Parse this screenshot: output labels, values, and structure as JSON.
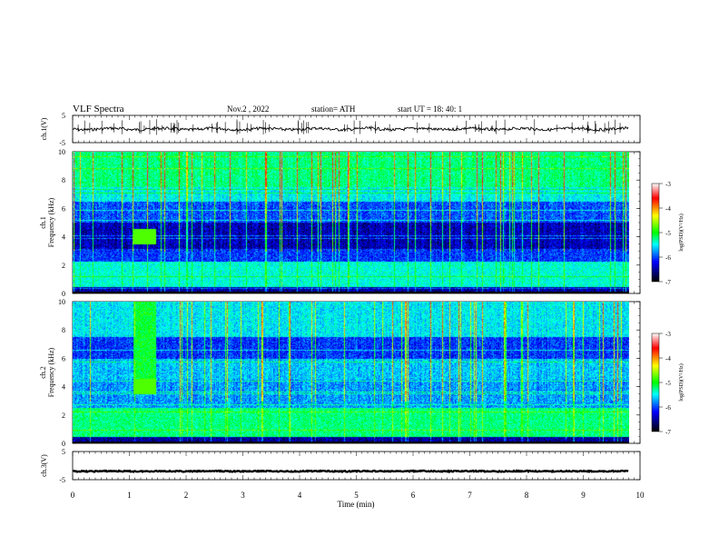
{
  "header": {
    "title": "VLF  Spectra",
    "date": "Nov.2  , 2022",
    "station": "station= ATH",
    "start": "start  UT  =    18: 40: 1"
  },
  "colorbar": {
    "label": "log(PSD)(V²/Hz)",
    "ticks": [
      "-3",
      "-4",
      "-5",
      "-6",
      "-7"
    ],
    "values": [
      -3,
      -4,
      -5,
      -6,
      -7
    ],
    "colors": [
      "#ffffff",
      "#ff0000",
      "#ffff00",
      "#00ff00",
      "#00ffff",
      "#0000ff",
      "#000000"
    ]
  },
  "chart_data": [
    {
      "type": "line",
      "name": "ch.1 waveform",
      "ylabel": "ch.1(V)",
      "ylim": [
        -5,
        5
      ],
      "yticks": [
        "5",
        "-5"
      ],
      "xlim": [
        0,
        10
      ],
      "baseline": 0,
      "series": [
        {
          "name": "ch.1",
          "description_values": "noisy trace near 0 V with occasional spikes"
        }
      ]
    },
    {
      "type": "heatmap",
      "name": "ch.1 spectrogram",
      "ylabel_top": "ch.1",
      "ylabel": "Frequency  (kHz)",
      "ylim": [
        0,
        10
      ],
      "yticks": [
        "0",
        "2",
        "4",
        "6",
        "8",
        "10"
      ],
      "xlim": [
        0,
        10
      ]
    },
    {
      "type": "heatmap",
      "name": "ch.2 spectrogram",
      "ylabel_top": "ch.2",
      "ylabel": "Frequency  (kHz)",
      "ylim": [
        0,
        10
      ],
      "yticks": [
        "0",
        "2",
        "4",
        "6",
        "8",
        "10"
      ],
      "xlim": [
        0,
        10
      ]
    },
    {
      "type": "line",
      "name": "ch.3 waveform",
      "ylabel": "ch.3(V)",
      "ylim": [
        -5,
        5
      ],
      "yticks": [
        "5",
        "-5"
      ],
      "xlim": [
        0,
        10
      ],
      "baseline": -2,
      "xlabel": "Time  (min)",
      "xticks": [
        "0",
        "1",
        "2",
        "3",
        "4",
        "5",
        "6",
        "7",
        "8",
        "9",
        "10"
      ],
      "xvalues": [
        0,
        1,
        2,
        3,
        4,
        5,
        6,
        7,
        8,
        9,
        10
      ]
    }
  ]
}
